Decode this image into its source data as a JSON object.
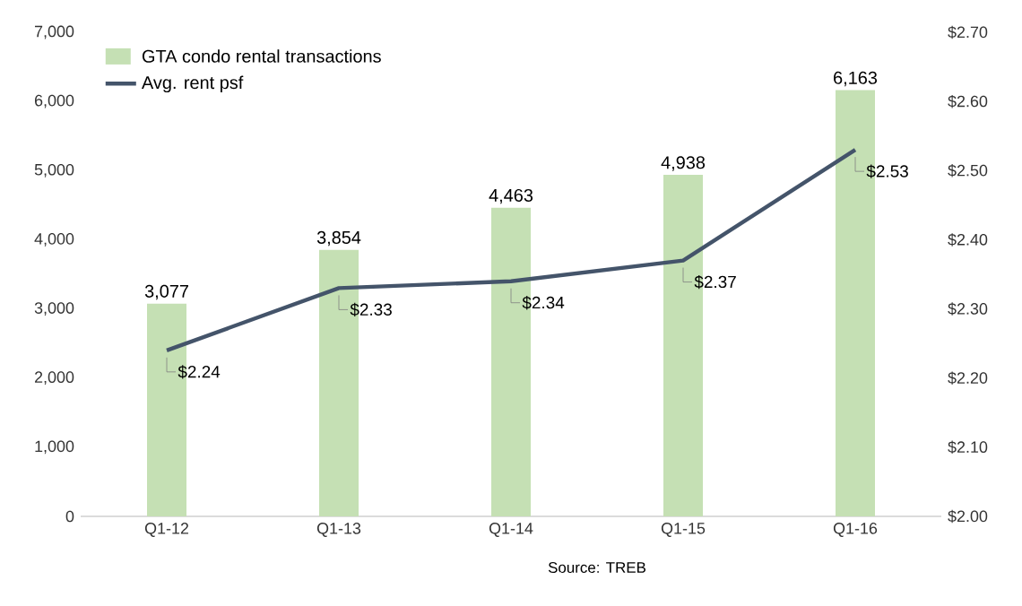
{
  "chart_data": {
    "type": "bar",
    "categories": [
      "Q1-12",
      "Q1-13",
      "Q1-14",
      "Q1-15",
      "Q1-16"
    ],
    "series": [
      {
        "name": "GTA condo rental transactions",
        "color": "#c5e0b4",
        "values": [
          3077,
          3854,
          4463,
          4938,
          6163
        ],
        "value_labels": [
          "3,077",
          "3,854",
          "4,463",
          "4,938",
          "6,163"
        ]
      },
      {
        "name": "Avg. rent psf",
        "type": "line",
        "axis": "y2",
        "color": "#44546a",
        "values": [
          2.24,
          2.33,
          2.34,
          2.37,
          2.53
        ],
        "value_labels": [
          "$2.24",
          "$2.33",
          "$2.34",
          "$2.37",
          "$2.53"
        ]
      }
    ],
    "ylim": [
      0,
      7000
    ],
    "yticks": [
      {
        "value": 0,
        "label": "0"
      },
      {
        "value": 1000,
        "label": "1,000"
      },
      {
        "value": 2000,
        "label": "2,000"
      },
      {
        "value": 3000,
        "label": "3,000"
      },
      {
        "value": 4000,
        "label": "4,000"
      },
      {
        "value": 5000,
        "label": "5,000"
      },
      {
        "value": 6000,
        "label": "6,000"
      },
      {
        "value": 7000,
        "label": "7,000"
      }
    ],
    "y2lim": [
      2.0,
      2.7
    ],
    "y2ticks": [
      {
        "value": 2.0,
        "label": "$2.00"
      },
      {
        "value": 2.1,
        "label": "$2.10"
      },
      {
        "value": 2.2,
        "label": "$2.20"
      },
      {
        "value": 2.3,
        "label": "$2.30"
      },
      {
        "value": 2.4,
        "label": "$2.40"
      },
      {
        "value": 2.5,
        "label": "$2.50"
      },
      {
        "value": 2.6,
        "label": "$2.60"
      },
      {
        "value": 2.7,
        "label": "$2.70"
      }
    ],
    "legend": "top left",
    "annotations": [
      "Source: TREB"
    ]
  }
}
